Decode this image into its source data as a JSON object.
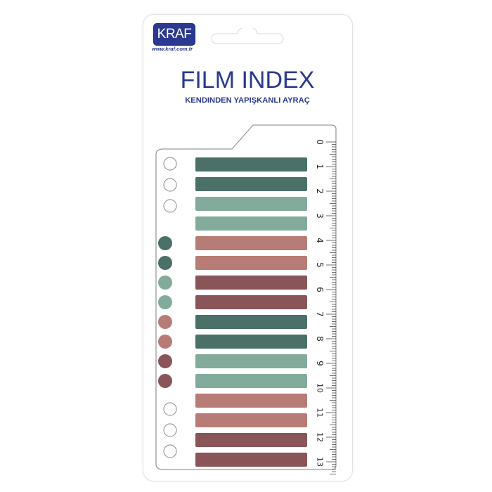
{
  "brand": {
    "logo_text": "KRAF",
    "url": "www.kraf.com.tr",
    "color": "#2b3990"
  },
  "product": {
    "title": "FILM INDEX",
    "subtitle": "KENDINDEN YAPIŞKANLI AYRAÇ"
  },
  "ruler": {
    "unit": "cm",
    "labels": [
      "0",
      "1",
      "2",
      "3",
      "4",
      "5",
      "6",
      "7",
      "8",
      "9",
      "10",
      "11",
      "12",
      "13"
    ]
  },
  "colors": {
    "dark_teal": "#4a7068",
    "light_teal": "#82ab9b",
    "salmon": "#b87c76",
    "rose": "#8a5558"
  },
  "strips": [
    "dark_teal",
    "dark_teal",
    "light_teal",
    "light_teal",
    "salmon",
    "salmon",
    "rose",
    "rose",
    "dark_teal",
    "dark_teal",
    "light_teal",
    "light_teal",
    "salmon",
    "salmon",
    "rose",
    "rose"
  ],
  "dots": [
    "dark_teal",
    "dark_teal",
    "light_teal",
    "light_teal",
    "salmon",
    "salmon",
    "rose",
    "rose"
  ]
}
